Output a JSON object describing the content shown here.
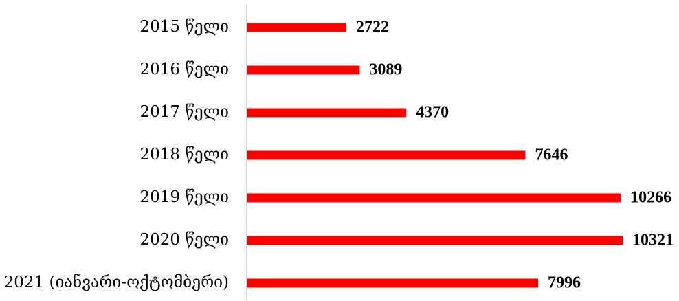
{
  "chart_data": {
    "type": "bar",
    "orientation": "horizontal",
    "categories": [
      "2015 წელი",
      "2016 წელი",
      "2017 წელი",
      "2018 წელი",
      "2019 წელი",
      "2020 წელი",
      "2021 (იანვარი-ოქტომბერი)"
    ],
    "values": [
      2722,
      3089,
      4370,
      7646,
      10266,
      10321,
      7996
    ],
    "bar_color": "#ff0000",
    "axis_color": "#d9d9d9",
    "xlim": [
      0,
      10321
    ],
    "grid": false,
    "legend": "none",
    "data_labels": true
  }
}
